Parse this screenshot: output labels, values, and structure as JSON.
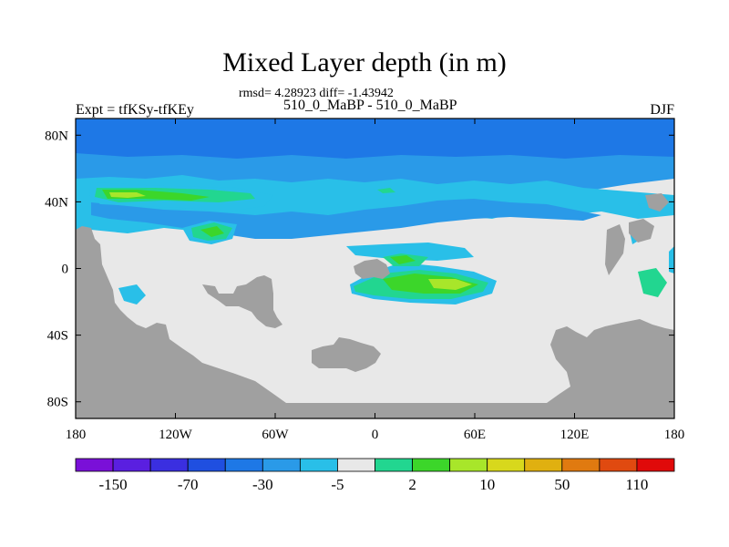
{
  "title": "Mixed Layer depth (in m)",
  "stats_line": "rmsd= 4.28923 diff= -1.43942",
  "experiment_line": "510_0_MaBP - 510_0_MaBP",
  "left_title": "Expt = tfKSy-tfKEy",
  "right_title": "DJF",
  "chart_data": {
    "type": "heatmap",
    "title": "Mixed Layer depth (in m)",
    "subtitle": "510_0_MaBP - 510_0_MaBP",
    "season": "DJF",
    "rmsd": 4.28923,
    "diff": -1.43942,
    "x_range": [
      -180,
      180
    ],
    "y_range": [
      -90,
      90
    ],
    "x_ticks": [
      -180,
      -120,
      -60,
      0,
      60,
      120,
      180
    ],
    "x_tick_labels": [
      "180",
      "120W",
      "60W",
      "0",
      "60E",
      "120E",
      "180"
    ],
    "y_ticks": [
      80,
      40,
      0,
      -40,
      -80
    ],
    "y_tick_labels": [
      "80N",
      "40N",
      "0",
      "40S",
      "80S"
    ],
    "colorbar": {
      "colors": [
        "#7a10d8",
        "#5a1fe0",
        "#3a2fe0",
        "#1f4fe0",
        "#1e78e6",
        "#2a9ae8",
        "#29bfe8",
        "#e8e8e8",
        "#22d690",
        "#3cd62a",
        "#a8e62a",
        "#d8d81c",
        "#e0b010",
        "#e07a10",
        "#e04a10",
        "#e00a0a"
      ],
      "labels": [
        "-150",
        "-70",
        "-30",
        "-5",
        "2",
        "10",
        "50",
        "110"
      ]
    },
    "fields": {
      "ocean_base": "#e8e8e8",
      "land": "#a0a0a0",
      "deep_blue": "#1e78e6",
      "mid_blue": "#2a9ae8",
      "light_blue": "#29bfe8",
      "teal": "#22d690",
      "green": "#3cd62a",
      "yellow_green": "#a8e62a"
    }
  }
}
